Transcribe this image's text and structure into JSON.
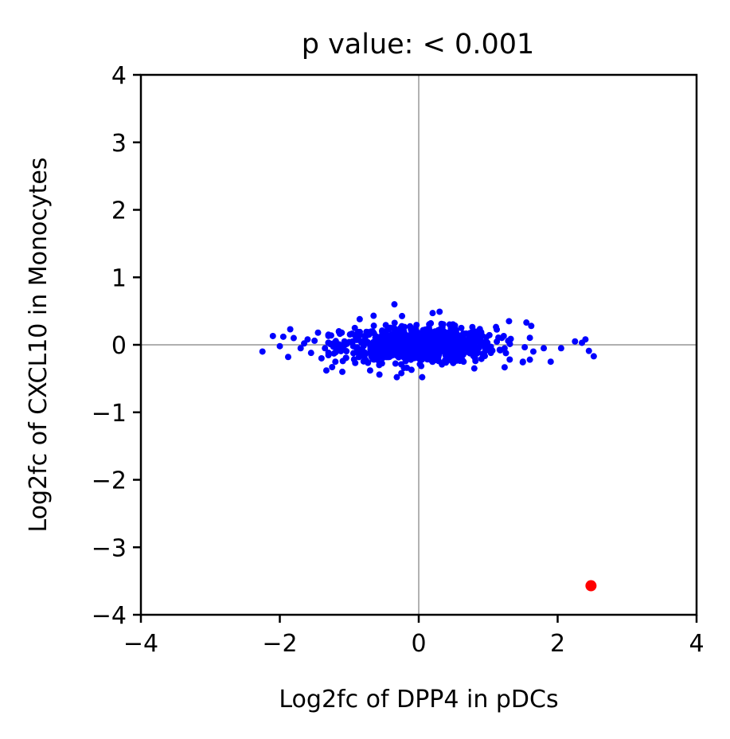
{
  "chart_data": {
    "type": "scatter",
    "title": "p value: < 0.001",
    "xlabel": "Log2fc of DPP4 in pDCs",
    "ylabel": "Log2fc of CXCL10 in Monocytes",
    "xlim": [
      -4,
      4
    ],
    "ylim": [
      -4,
      4
    ],
    "xticks": [
      -4,
      -2,
      0,
      2,
      4
    ],
    "yticks": [
      -4,
      -3,
      -2,
      -1,
      0,
      1,
      2,
      3,
      4
    ],
    "xtick_labels": [
      "−4",
      "−2",
      "0",
      "2",
      "4"
    ],
    "ytick_labels": [
      "−4",
      "−3",
      "−2",
      "−1",
      "0",
      "1",
      "2",
      "3",
      "4"
    ],
    "reference_lines": {
      "x": 0,
      "y": 0,
      "color": "#808080"
    },
    "grid": false,
    "series": [
      {
        "color": "#0000ff",
        "cluster": {
          "count": 900,
          "x_center": 0.0,
          "x_sd": 0.55,
          "y_center": 0.0,
          "y_sd": 0.13,
          "x_range": [
            -1.3,
            1.6
          ],
          "y_range": [
            -0.48,
            0.46
          ]
        },
        "points": [
          [
            -2.25,
            -0.1
          ],
          [
            -2.1,
            0.13
          ],
          [
            -2.0,
            -0.02
          ],
          [
            -1.95,
            0.12
          ],
          [
            -1.85,
            0.23
          ],
          [
            -1.88,
            -0.18
          ],
          [
            -1.8,
            0.1
          ],
          [
            -1.7,
            -0.05
          ],
          [
            -1.65,
            0.02
          ],
          [
            -1.6,
            0.08
          ],
          [
            -1.55,
            -0.12
          ],
          [
            -1.5,
            0.06
          ],
          [
            -1.45,
            0.18
          ],
          [
            -1.4,
            -0.2
          ],
          [
            -1.35,
            -0.05
          ],
          [
            -1.3,
            0.03
          ],
          [
            -1.33,
            -0.38
          ],
          [
            -1.2,
            -0.25
          ],
          [
            -1.1,
            -0.4
          ],
          [
            -1.15,
            0.2
          ],
          [
            -0.85,
            0.38
          ],
          [
            -0.65,
            0.43
          ],
          [
            -0.7,
            -0.38
          ],
          [
            -0.35,
            0.6
          ],
          [
            -0.25,
            -0.42
          ],
          [
            0.05,
            -0.48
          ],
          [
            0.2,
            0.47
          ],
          [
            0.3,
            0.49
          ],
          [
            0.8,
            -0.35
          ],
          [
            1.3,
            0.35
          ],
          [
            1.5,
            -0.25
          ],
          [
            1.6,
            -0.22
          ],
          [
            1.62,
            0.28
          ],
          [
            1.55,
            0.33
          ],
          [
            1.65,
            -0.1
          ],
          [
            1.8,
            -0.05
          ],
          [
            1.9,
            -0.25
          ],
          [
            2.05,
            -0.05
          ],
          [
            2.25,
            0.05
          ],
          [
            2.35,
            0.03
          ],
          [
            2.4,
            0.08
          ],
          [
            2.45,
            -0.09
          ],
          [
            2.52,
            -0.17
          ]
        ]
      },
      {
        "color": "#ff0000",
        "points": [
          [
            2.48,
            -3.57
          ]
        ]
      }
    ]
  }
}
